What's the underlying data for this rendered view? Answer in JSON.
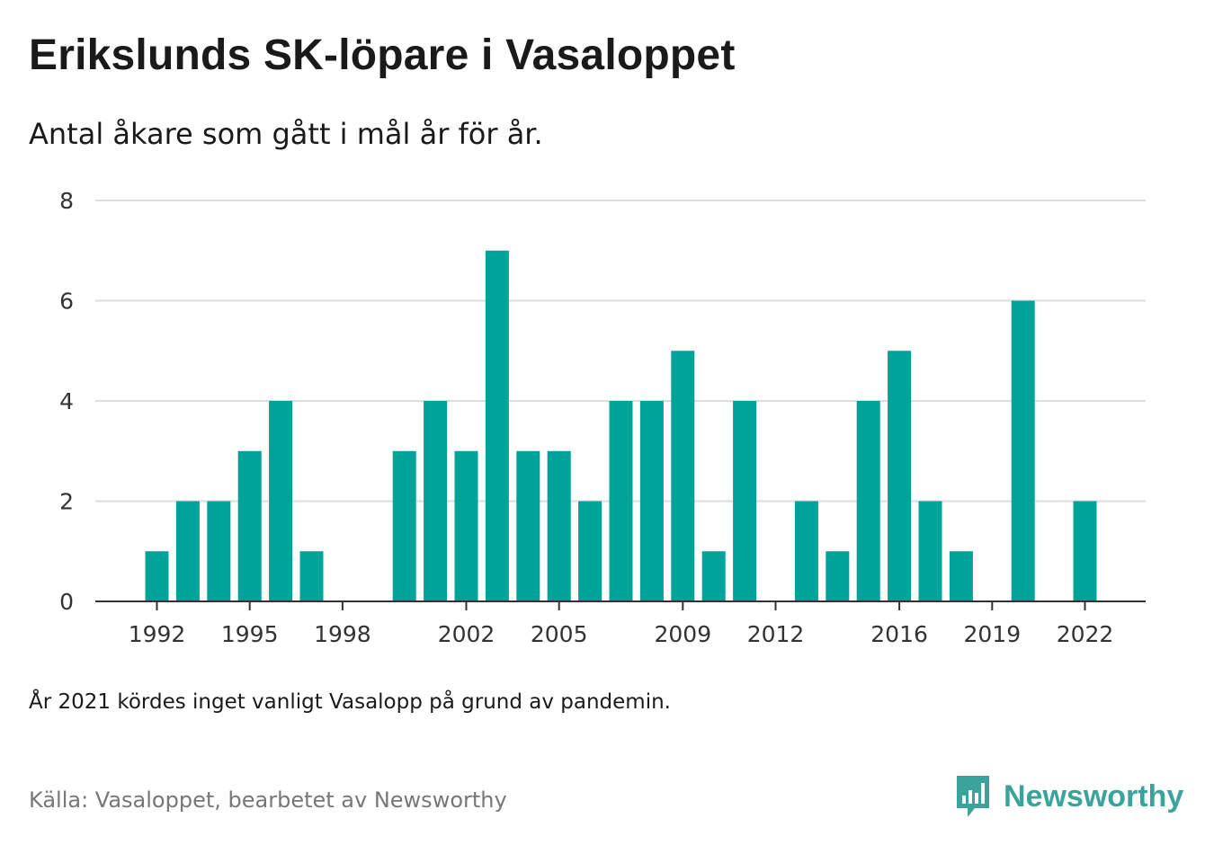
{
  "header": {
    "title": "Erikslunds SK-löpare i Vasaloppet",
    "subtitle": "Antal åkare som gått i mål år för år."
  },
  "chart_data": {
    "type": "bar",
    "title": "Erikslunds SK-löpare i Vasaloppet",
    "subtitle": "Antal åkare som gått i mål år för år.",
    "xlabel": "",
    "ylabel": "",
    "ylim": [
      0,
      8
    ],
    "yticks": [
      0,
      2,
      4,
      6,
      8
    ],
    "xtick_labels": [
      "1992",
      "1995",
      "1998",
      "2002",
      "2005",
      "2009",
      "2012",
      "2016",
      "2019",
      "2022"
    ],
    "grid": true,
    "bar_color": "#00a39a",
    "categories": [
      1992,
      1993,
      1994,
      1995,
      1996,
      1997,
      1998,
      1999,
      2000,
      2001,
      2002,
      2003,
      2004,
      2005,
      2006,
      2007,
      2008,
      2009,
      2010,
      2011,
      2012,
      2013,
      2014,
      2015,
      2016,
      2017,
      2018,
      2019,
      2020,
      2021,
      2022
    ],
    "values": [
      1,
      2,
      2,
      3,
      4,
      1,
      0,
      0,
      3,
      4,
      3,
      7,
      3,
      3,
      2,
      4,
      4,
      5,
      1,
      4,
      0,
      2,
      1,
      4,
      5,
      2,
      1,
      0,
      6,
      0,
      2
    ]
  },
  "footer": {
    "note": "År 2021 kördes inget vanligt Vasalopp på grund av pandemin.",
    "source": "Källa: Vasaloppet, bearbetet av Newsworthy",
    "brand": "Newsworthy",
    "brand_icon": "newsworthy-logo-icon",
    "brand_color": "#3aa39b"
  }
}
